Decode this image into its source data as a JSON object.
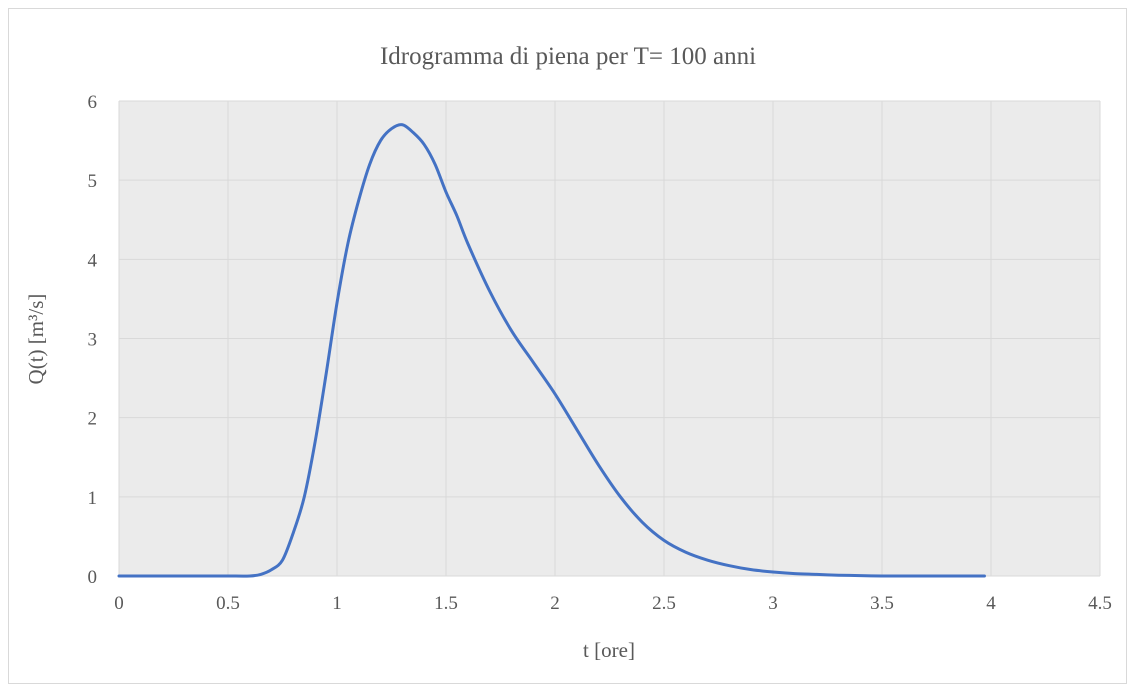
{
  "chart_data": {
    "type": "line",
    "title": "Idrogramma di piena per T= 100 anni",
    "xlabel": "t [ore]",
    "ylabel": "Q(t) [m³/s]",
    "xlim": [
      0,
      4.5
    ],
    "ylim": [
      0,
      6
    ],
    "x_ticks": [
      "0",
      "0.5",
      "1",
      "1.5",
      "2",
      "2.5",
      "3",
      "3.5",
      "4",
      "4.5"
    ],
    "y_ticks": [
      "0",
      "1",
      "2",
      "3",
      "4",
      "5",
      "6"
    ],
    "grid": true,
    "plot_background": "#ebebeb",
    "grid_color": "#d9d9d9",
    "series": [
      {
        "color": "#4472c4",
        "x": [
          0,
          0.1,
          0.2,
          0.3,
          0.4,
          0.5,
          0.6,
          0.65,
          0.7,
          0.75,
          0.8,
          0.85,
          0.9,
          0.95,
          1.0,
          1.05,
          1.1,
          1.15,
          1.2,
          1.25,
          1.3,
          1.35,
          1.4,
          1.45,
          1.5,
          1.55,
          1.6,
          1.7,
          1.8,
          1.9,
          2.0,
          2.1,
          2.2,
          2.3,
          2.4,
          2.5,
          2.6,
          2.7,
          2.8,
          2.9,
          3.0,
          3.1,
          3.2,
          3.3,
          3.4,
          3.5,
          3.6,
          3.7,
          3.75,
          3.8,
          3.9,
          3.97
        ],
        "y": [
          0,
          0,
          0,
          0,
          0,
          0,
          0,
          0.02,
          0.08,
          0.2,
          0.55,
          1.0,
          1.7,
          2.55,
          3.45,
          4.2,
          4.75,
          5.2,
          5.5,
          5.65,
          5.7,
          5.6,
          5.45,
          5.2,
          4.85,
          4.55,
          4.2,
          3.6,
          3.1,
          2.7,
          2.3,
          1.85,
          1.4,
          1.0,
          0.68,
          0.45,
          0.3,
          0.2,
          0.13,
          0.08,
          0.05,
          0.03,
          0.02,
          0.01,
          0.005,
          0,
          0,
          0,
          0,
          0,
          0,
          0
        ]
      }
    ]
  }
}
